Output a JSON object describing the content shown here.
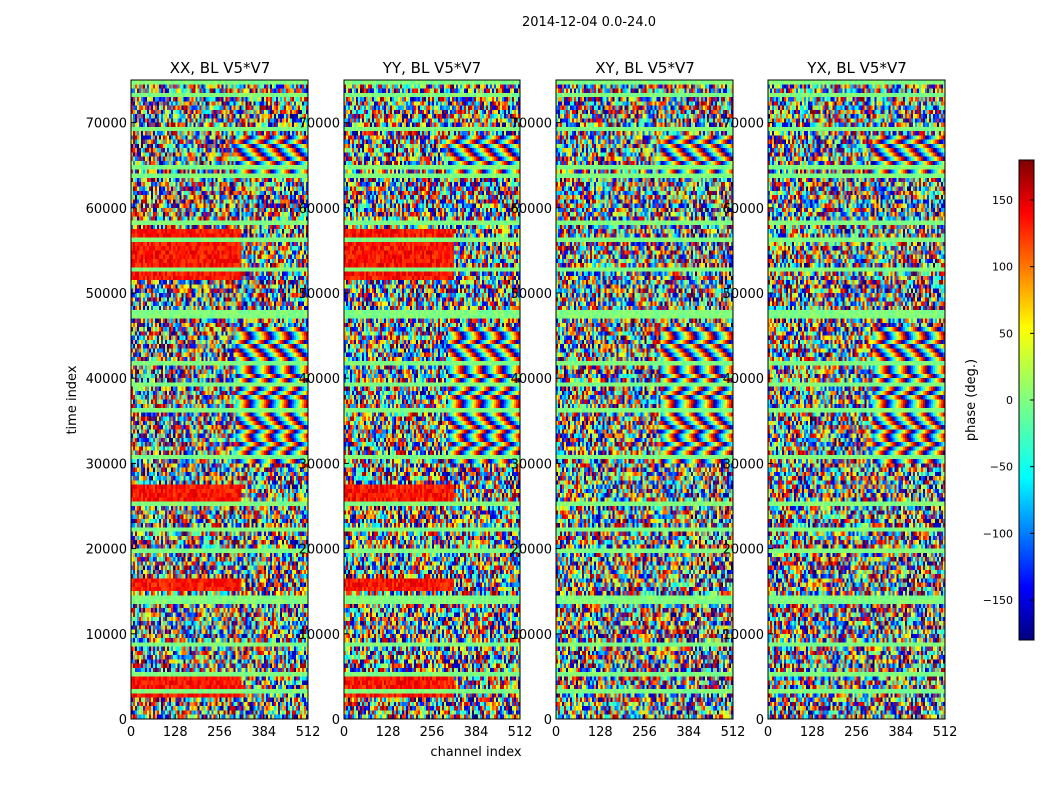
{
  "chart_data": {
    "type": "heatmap",
    "suptitle": "2014-12-04 0.0-24.0",
    "panels": [
      {
        "title": "XX, BL V5*V7"
      },
      {
        "title": "YY, BL V5*V7"
      },
      {
        "title": "XY, BL V5*V7"
      },
      {
        "title": "YX, BL V5*V7"
      }
    ],
    "xlabel": "channel index",
    "ylabel": "time index",
    "xlim": [
      0,
      512
    ],
    "ylim": [
      0,
      75000
    ],
    "xticks": [
      "0",
      "128",
      "256",
      "384",
      "512"
    ],
    "yticks": [
      "0",
      "10000",
      "20000",
      "30000",
      "40000",
      "50000",
      "60000",
      "70000"
    ],
    "colorbar": {
      "label": "phase (deg.)",
      "range": [
        -180,
        180
      ],
      "ticks": [
        "150",
        "100",
        "50",
        "0",
        "−50",
        "−100",
        "−150"
      ],
      "colormap": "jet"
    },
    "colormap_stops": [
      "#00007f",
      "#0000ff",
      "#007fff",
      "#00ffff",
      "#7fff7f",
      "#ffff00",
      "#ff7f00",
      "#ff0000",
      "#7f0000"
    ]
  }
}
